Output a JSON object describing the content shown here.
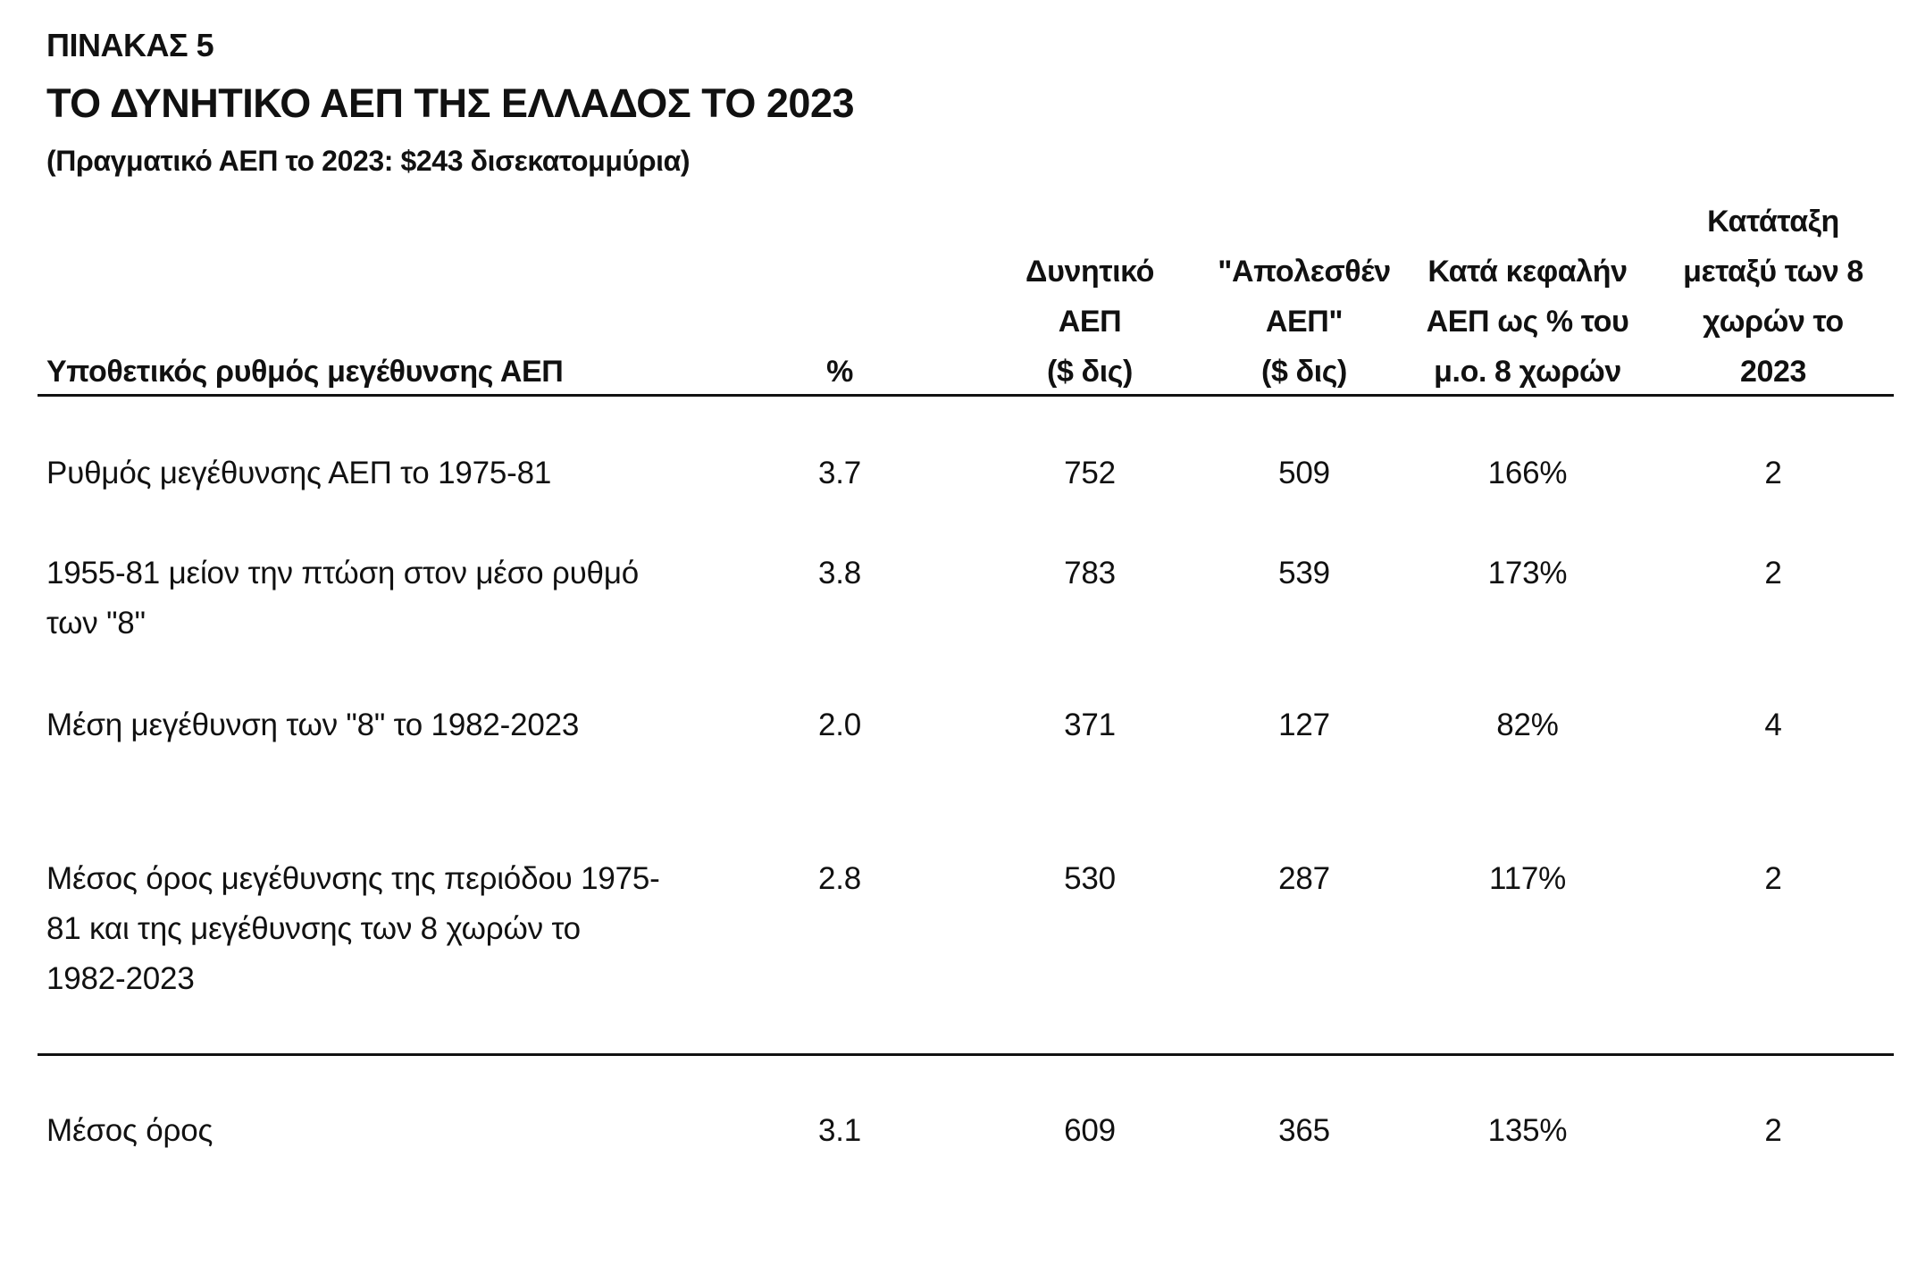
{
  "table_label": "ΠΙΝΑΚΑΣ 5",
  "title": "ΤΟ ΔΥΝΗΤΙΚΟ ΑΕΠ ΤΗΣ ΕΛΛΑΔΟΣ ΤΟ 2023",
  "subtitle": "(Πραγματικό ΑΕΠ το 2023: $243 δισεκατομμύρια)",
  "headers": {
    "scenario": "Υποθετικός ρυθμός μεγέθυνσης ΑΕΠ",
    "percent": "%",
    "potential_gdp": [
      "Δυνητικό",
      "ΑΕΠ",
      "($ δις)"
    ],
    "lost_gdp": [
      "\"Απολεσθέν",
      "ΑΕΠ\"",
      "($ δις)"
    ],
    "per_capita": [
      "Κατά κεφαλήν",
      "ΑΕΠ ως % του",
      "μ.ο. 8 χωρών"
    ],
    "ranking": [
      "Κατάταξη",
      "μεταξύ των 8",
      "χωρών το",
      "2023"
    ]
  },
  "rows": [
    {
      "scenario_lines": [
        "Ρυθμός μεγέθυνσης ΑΕΠ το 1975-81"
      ],
      "percent": "3.7",
      "potential_gdp": "752",
      "lost_gdp": "509",
      "per_capita": "166%",
      "ranking": "2"
    },
    {
      "scenario_lines": [
        "1955-81 μείον την πτώση στον μέσο ρυθμό",
        "των \"8\""
      ],
      "percent": "3.8",
      "potential_gdp": "783",
      "lost_gdp": "539",
      "per_capita": "173%",
      "ranking": "2"
    },
    {
      "scenario_lines": [
        "Μέση μεγέθυνση των \"8\" το 1982-2023"
      ],
      "percent": "2.0",
      "potential_gdp": "371",
      "lost_gdp": "127",
      "per_capita": "82%",
      "ranking": "4"
    },
    {
      "scenario_lines": [
        "Μέσος όρος μεγέθυνσης της περιόδου 1975-",
        "81 και της μεγέθυνσης των 8 χωρών το",
        "1982-2023"
      ],
      "percent": "2.8",
      "potential_gdp": "530",
      "lost_gdp": "287",
      "per_capita": "117%",
      "ranking": "2"
    }
  ],
  "average": {
    "label": "Μέσος όρος",
    "percent": "3.1",
    "potential_gdp": "609",
    "lost_gdp": "365",
    "per_capita": "135%",
    "ranking": "2"
  }
}
